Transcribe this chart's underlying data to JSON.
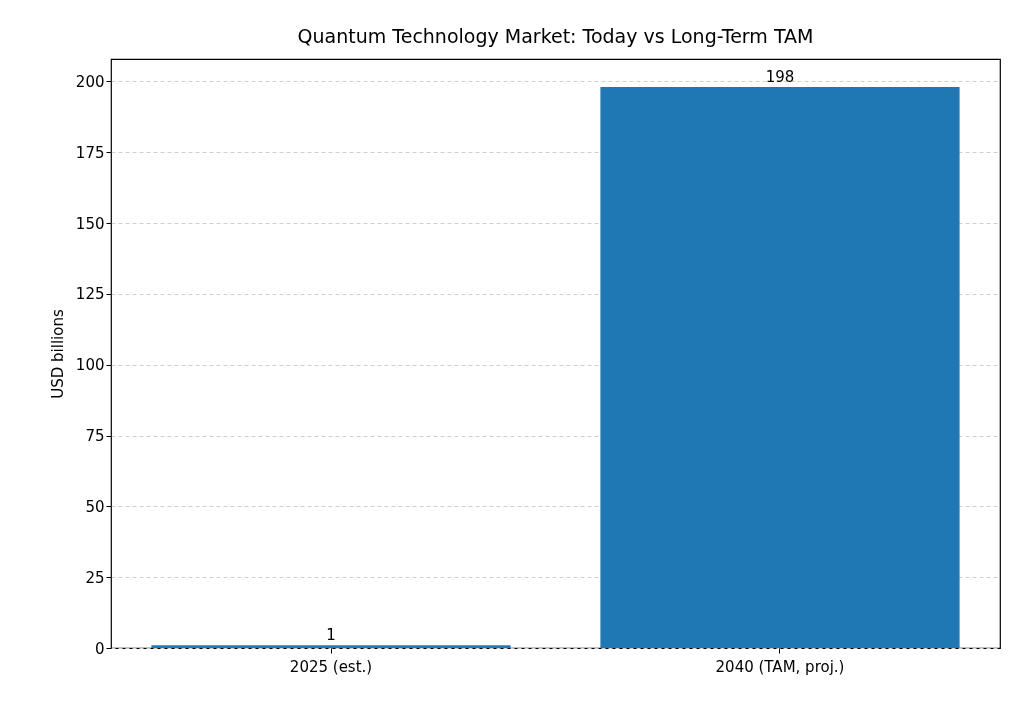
{
  "chart_data": {
    "type": "bar",
    "title": "Quantum Technology Market: Today vs Long-Term TAM",
    "ylabel": "USD billions",
    "categories": [
      "2025 (est.)",
      "2040 (TAM, proj.)"
    ],
    "values": [
      1,
      198
    ],
    "color": "#1f77b4",
    "ylim": [
      0,
      207.9
    ],
    "yticks": [
      0,
      25,
      50,
      75,
      100,
      125,
      150,
      175,
      200
    ],
    "grid": "y",
    "data_labels": true
  }
}
